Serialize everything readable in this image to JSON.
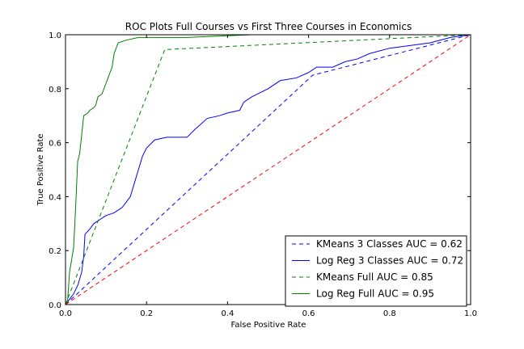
{
  "chart_data": {
    "type": "line",
    "title": "ROC Plots Full Courses vs First Three Courses in Economics",
    "xlabel": "False Positive Rate",
    "ylabel": "True Positive Rate",
    "xlim": [
      0,
      1
    ],
    "ylim": [
      0,
      1
    ],
    "xticks": [
      "0.0",
      "0.2",
      "0.4",
      "0.6",
      "0.8",
      "1.0"
    ],
    "yticks": [
      "0.0",
      "0.2",
      "0.4",
      "0.6",
      "0.8",
      "1.0"
    ],
    "grid": false,
    "legend_position": "lower-right",
    "series": [
      {
        "name": "KMeans 3 Classes AUC = 0.62",
        "color": "#0000ff",
        "style": "dashed",
        "points": [
          [
            0,
            0
          ],
          [
            0.61,
            0.85
          ],
          [
            1,
            1
          ]
        ]
      },
      {
        "name": "Log Reg 3 Classes AUC = 0.72",
        "color": "#0000ff",
        "style": "solid",
        "points": [
          [
            0,
            0
          ],
          [
            0.005,
            0.01
          ],
          [
            0.01,
            0.02
          ],
          [
            0.02,
            0.04
          ],
          [
            0.03,
            0.07
          ],
          [
            0.04,
            0.12
          ],
          [
            0.045,
            0.18
          ],
          [
            0.048,
            0.26
          ],
          [
            0.06,
            0.28
          ],
          [
            0.07,
            0.3
          ],
          [
            0.08,
            0.31
          ],
          [
            0.09,
            0.32
          ],
          [
            0.1,
            0.33
          ],
          [
            0.12,
            0.34
          ],
          [
            0.13,
            0.35
          ],
          [
            0.14,
            0.36
          ],
          [
            0.15,
            0.38
          ],
          [
            0.16,
            0.4
          ],
          [
            0.17,
            0.45
          ],
          [
            0.18,
            0.5
          ],
          [
            0.19,
            0.55
          ],
          [
            0.2,
            0.58
          ],
          [
            0.22,
            0.61
          ],
          [
            0.25,
            0.62
          ],
          [
            0.3,
            0.62
          ],
          [
            0.32,
            0.65
          ],
          [
            0.35,
            0.69
          ],
          [
            0.38,
            0.7
          ],
          [
            0.4,
            0.71
          ],
          [
            0.43,
            0.72
          ],
          [
            0.44,
            0.75
          ],
          [
            0.46,
            0.77
          ],
          [
            0.5,
            0.8
          ],
          [
            0.53,
            0.83
          ],
          [
            0.57,
            0.84
          ],
          [
            0.6,
            0.86
          ],
          [
            0.62,
            0.88
          ],
          [
            0.66,
            0.88
          ],
          [
            0.69,
            0.9
          ],
          [
            0.72,
            0.91
          ],
          [
            0.75,
            0.93
          ],
          [
            0.8,
            0.95
          ],
          [
            0.85,
            0.96
          ],
          [
            0.9,
            0.97
          ],
          [
            0.95,
            0.99
          ],
          [
            1,
            1
          ]
        ]
      },
      {
        "name": "KMeans Full AUC = 0.85",
        "color": "#008000",
        "style": "dashed",
        "points": [
          [
            0,
            0
          ],
          [
            0.245,
            0.945
          ],
          [
            1,
            1
          ]
        ]
      },
      {
        "name": "Log Reg Full AUC = 0.95",
        "color": "#008000",
        "style": "solid",
        "points": [
          [
            0,
            0
          ],
          [
            0.005,
            0.01
          ],
          [
            0.01,
            0.12
          ],
          [
            0.02,
            0.21
          ],
          [
            0.025,
            0.36
          ],
          [
            0.03,
            0.53
          ],
          [
            0.035,
            0.56
          ],
          [
            0.04,
            0.63
          ],
          [
            0.045,
            0.7
          ],
          [
            0.055,
            0.71
          ],
          [
            0.06,
            0.72
          ],
          [
            0.07,
            0.73
          ],
          [
            0.075,
            0.74
          ],
          [
            0.08,
            0.77
          ],
          [
            0.09,
            0.78
          ],
          [
            0.095,
            0.8
          ],
          [
            0.1,
            0.82
          ],
          [
            0.105,
            0.84
          ],
          [
            0.11,
            0.86
          ],
          [
            0.115,
            0.88
          ],
          [
            0.12,
            0.93
          ],
          [
            0.13,
            0.97
          ],
          [
            0.15,
            0.98
          ],
          [
            0.18,
            0.99
          ],
          [
            0.3,
            0.99
          ],
          [
            0.46,
            1.0
          ],
          [
            1,
            1
          ]
        ]
      },
      {
        "name": "",
        "color": "#ff0000",
        "style": "dashed",
        "points": [
          [
            0,
            0
          ],
          [
            1,
            1
          ]
        ]
      }
    ]
  }
}
